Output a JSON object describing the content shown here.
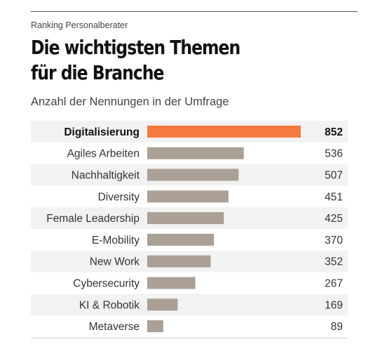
{
  "header": {
    "eyebrow": "Ranking Personalberater",
    "title_line1": "Die wichtigsten Themen",
    "title_line2": "für die Branche",
    "subtitle": "Anzahl der Nennungen in der Umfrage"
  },
  "colors": {
    "highlight": "#f47a3f",
    "bar": "#aba095",
    "row_alt": "#f2f2f2",
    "text": "#333333"
  },
  "chart_data": {
    "type": "bar",
    "orientation": "horizontal",
    "title": "Die wichtigsten Themen für die Branche",
    "subtitle": "Anzahl der Nennungen in der Umfrage",
    "categories": [
      "Digitalisierung",
      "Agiles Arbeiten",
      "Nachhaltigkeit",
      "Diversity",
      "Female Leadership",
      "E-Mobility",
      "New Work",
      "Cybersecurity",
      "KI & Robotik",
      "Metaverse"
    ],
    "values": [
      852,
      536,
      507,
      451,
      425,
      370,
      352,
      267,
      169,
      89
    ],
    "value_labels": [
      "852",
      "536",
      "507",
      "451",
      "425",
      "370",
      "352",
      "267",
      "169",
      "89"
    ],
    "highlighted_category": "Digitalisierung",
    "xlim": [
      0,
      852
    ],
    "grid": false,
    "legend": "none"
  }
}
